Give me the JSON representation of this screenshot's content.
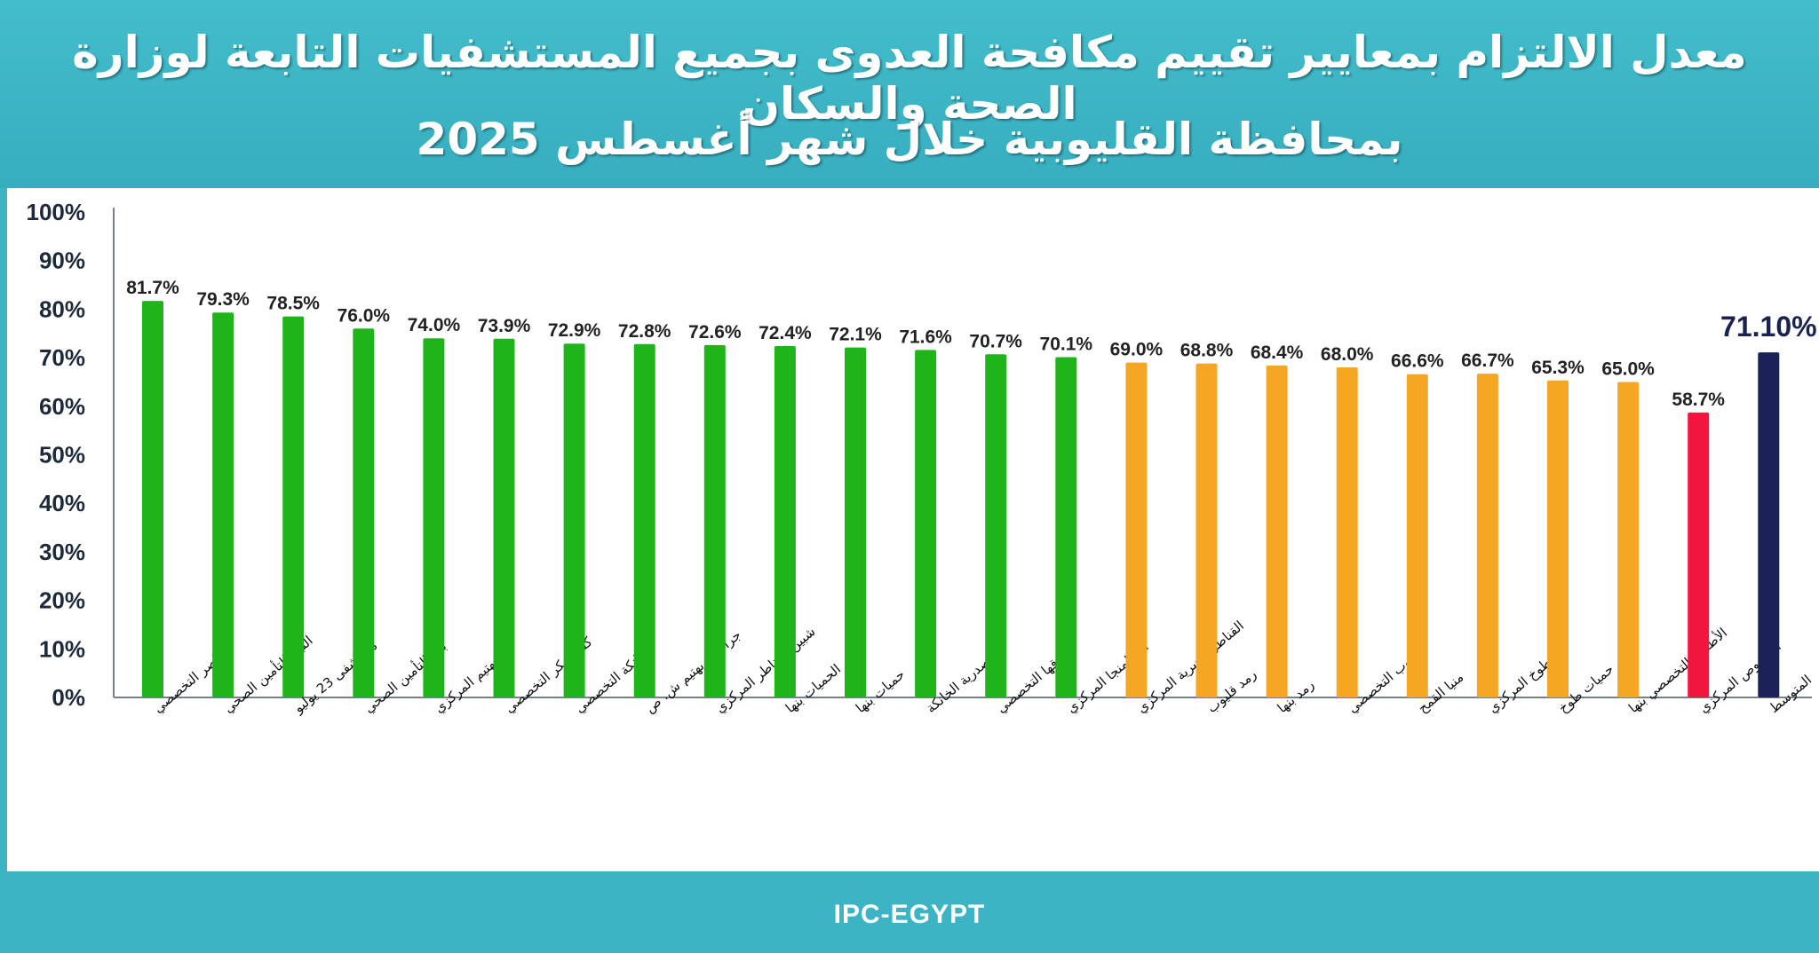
{
  "header": {
    "title_line1": "معدل الالتزام بمعايير تقييم مكافحة العدوى بجميع المستشفيات التابعة لوزارة الصحة والسكان",
    "title_line2": "بمحافظة القليوبية خلال شهر أغسطس 2025"
  },
  "footer": {
    "text": "IPC-EGYPT"
  },
  "colors": {
    "header_bg": "#3cb4c4",
    "green": "#1fb51a",
    "orange": "#f5a623",
    "red": "#f0163e",
    "average": "#1b2256"
  },
  "chart_data": {
    "type": "bar",
    "ylim": [
      0,
      100
    ],
    "yticks": [
      "0%",
      "10%",
      "20%",
      "30%",
      "40%",
      "50%",
      "60%",
      "70%",
      "80%",
      "90%",
      "100%"
    ],
    "grid": false,
    "categories": [
      "ناصر التخصصي",
      "النيل للتأمين الصحي",
      "مستشفى 23 يوليو",
      "بنها التأمين الصحي",
      "بهتيم المركزي",
      "كفر شكر التخصصي",
      "الخانكة التخصصي",
      "جراحات بهتيم ش. ص",
      "شبين القناطر المركزي",
      "الحميات بنها",
      "حميات بنها",
      "الصدرية الخانكة",
      "قها التخصصي",
      "أبو المنجا المركزي",
      "القناطر الخيرية المركزي",
      "رمد قليوب",
      "رمد بنها",
      "قليوب التخصصي",
      "منيا القمح",
      "طوخ المركزي",
      "حميات طوخ",
      "الأطفال التخصصي بنها",
      "الخصوص المركزي",
      "المتوسط"
    ],
    "values": [
      81.7,
      79.3,
      78.5,
      76.0,
      74.0,
      73.9,
      72.9,
      72.8,
      72.6,
      72.4,
      72.1,
      71.6,
      70.7,
      70.1,
      69.0,
      68.8,
      68.4,
      68.0,
      66.6,
      66.7,
      65.3,
      65.0,
      58.7,
      71.1
    ],
    "value_labels": [
      "81.7%",
      "79.3%",
      "78.5%",
      "76.0%",
      "74.0%",
      "73.9%",
      "72.9%",
      "72.8%",
      "72.6%",
      "72.4%",
      "72.1%",
      "71.6%",
      "70.7%",
      "70.1%",
      "69.0%",
      "68.8%",
      "68.4%",
      "68.0%",
      "66.6%",
      "66.7%",
      "65.3%",
      "65.0%",
      "58.7%",
      "71.10%"
    ],
    "bar_colors": [
      "green",
      "green",
      "green",
      "green",
      "green",
      "green",
      "green",
      "green",
      "green",
      "green",
      "green",
      "green",
      "green",
      "green",
      "orange",
      "orange",
      "orange",
      "orange",
      "orange",
      "orange",
      "orange",
      "orange",
      "red",
      "average"
    ]
  }
}
